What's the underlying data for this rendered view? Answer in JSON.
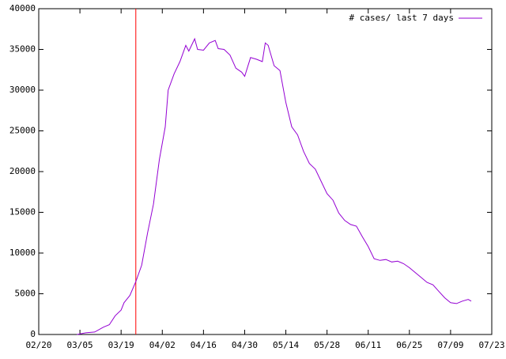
{
  "chart_data": {
    "type": "line",
    "x": [
      "03/04",
      "03/07",
      "03/10",
      "03/13",
      "03/15",
      "03/17",
      "03/19",
      "03/20",
      "03/22",
      "03/24",
      "03/26",
      "03/28",
      "03/30",
      "04/01",
      "04/03",
      "04/04",
      "04/06",
      "04/08",
      "04/10",
      "04/11",
      "04/13",
      "04/14",
      "04/16",
      "04/18",
      "04/20",
      "04/21",
      "04/23",
      "04/25",
      "04/27",
      "04/29",
      "04/30",
      "05/02",
      "05/04",
      "05/06",
      "05/07",
      "05/08",
      "05/10",
      "05/12",
      "05/14",
      "05/16",
      "05/18",
      "05/20",
      "05/22",
      "05/24",
      "05/26",
      "05/28",
      "05/30",
      "06/01",
      "06/03",
      "06/05",
      "06/07",
      "06/09",
      "06/11",
      "06/13",
      "06/15",
      "06/17",
      "06/19",
      "06/21",
      "06/23",
      "06/25",
      "06/27",
      "06/29",
      "07/01",
      "07/03",
      "07/05",
      "07/07",
      "07/09",
      "07/11",
      "07/13",
      "07/15",
      "07/16"
    ],
    "series": [
      {
        "name": "# cases/ last 7 days",
        "color": "#9400d3",
        "values": [
          0,
          200,
          300,
          900,
          1200,
          2300,
          3000,
          3900,
          4800,
          6500,
          8500,
          12500,
          16000,
          21500,
          25500,
          30000,
          32000,
          33500,
          35500,
          34800,
          36300,
          35000,
          34900,
          35800,
          36100,
          35100,
          35000,
          34300,
          32700,
          32200,
          31700,
          34000,
          33800,
          33500,
          35800,
          35500,
          33000,
          32400,
          28500,
          25500,
          24500,
          22500,
          21000,
          20300,
          18800,
          17300,
          16500,
          14900,
          14000,
          13500,
          13300,
          12000,
          10800,
          9300,
          9100,
          9200,
          8900,
          9000,
          8700,
          8200,
          7600,
          7000,
          6400,
          6100,
          5300,
          4500,
          3900,
          3800,
          4100,
          4300,
          4100
        ]
      }
    ],
    "xlim": [
      "02/20",
      "07/23"
    ],
    "xticks": [
      "02/20",
      "03/05",
      "03/19",
      "04/02",
      "04/16",
      "04/30",
      "05/14",
      "05/28",
      "06/11",
      "06/25",
      "07/09",
      "07/23"
    ],
    "ylim": [
      0,
      40000
    ],
    "yticks": [
      0,
      5000,
      10000,
      15000,
      20000,
      25000,
      30000,
      35000,
      40000
    ],
    "marker_x": "03/24",
    "marker_color": "#ff0000",
    "legend": "top-right"
  }
}
